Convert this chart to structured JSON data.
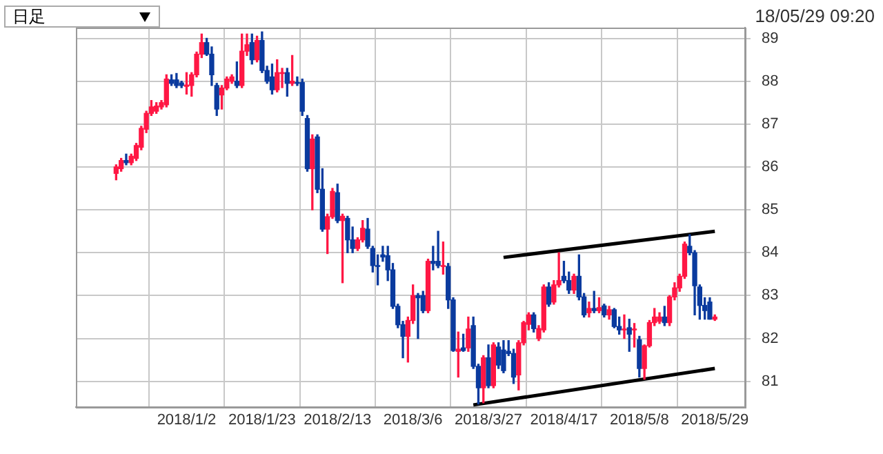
{
  "chart_data": {
    "type": "candlestick",
    "annotations": [
      "日足",
      "18/05/29 09:20"
    ],
    "categories": [
      null,
      null,
      null,
      null,
      null,
      null,
      null,
      null,
      null,
      null,
      null,
      null,
      null,
      null,
      "2018/1/2",
      null,
      null,
      null,
      null,
      null,
      null,
      null,
      null,
      null,
      null,
      null,
      null,
      null,
      null,
      "2018/1/23",
      null,
      null,
      null,
      null,
      null,
      null,
      null,
      null,
      null,
      null,
      null,
      null,
      null,
      null,
      "2018/2/13",
      null,
      null,
      null,
      null,
      null,
      null,
      null,
      null,
      null,
      null,
      null,
      null,
      null,
      null,
      "2018/3/6",
      null,
      null,
      null,
      null,
      null,
      null,
      null,
      null,
      null,
      null,
      null,
      null,
      null,
      null,
      "2018/3/27",
      null,
      null,
      null,
      null,
      null,
      null,
      null,
      null,
      null,
      null,
      null,
      null,
      null,
      null,
      "2018/4/17",
      null,
      null,
      null,
      null,
      null,
      null,
      null,
      null,
      null,
      null,
      null,
      null,
      null,
      null,
      "2018/5/8",
      null,
      null,
      null,
      null,
      null,
      null,
      null,
      null,
      null,
      null,
      null,
      null,
      null,
      null,
      "2018/5/29"
    ],
    "ohlc": [
      [
        85.85,
        86.05,
        85.7,
        86.0
      ],
      [
        85.96,
        86.2,
        85.9,
        86.15
      ],
      [
        86.15,
        86.3,
        86.05,
        86.1
      ],
      [
        86.1,
        86.3,
        86.05,
        86.25
      ],
      [
        86.2,
        86.55,
        86.15,
        86.5
      ],
      [
        86.46,
        86.95,
        86.4,
        86.9
      ],
      [
        86.88,
        87.3,
        86.8,
        87.25
      ],
      [
        87.25,
        87.55,
        87.2,
        87.4
      ],
      [
        87.3,
        87.5,
        87.25,
        87.42
      ],
      [
        87.4,
        87.55,
        87.35,
        87.5
      ],
      [
        87.45,
        88.15,
        87.4,
        88.05
      ],
      [
        88.03,
        88.15,
        87.9,
        87.95
      ],
      [
        88.03,
        88.18,
        87.85,
        87.9
      ],
      [
        87.96,
        88.0,
        87.85,
        87.9
      ],
      [
        87.88,
        88.2,
        87.7,
        87.91
      ],
      [
        87.9,
        88.2,
        87.65,
        88.15
      ],
      [
        88.15,
        88.68,
        88.1,
        88.63
      ],
      [
        88.63,
        89.1,
        88.55,
        88.9
      ],
      [
        88.9,
        89.0,
        88.6,
        88.63
      ],
      [
        88.63,
        88.8,
        87.9,
        88.15
      ],
      [
        87.9,
        87.95,
        87.2,
        87.35
      ],
      [
        87.68,
        87.9,
        87.35,
        87.84
      ],
      [
        87.84,
        88.1,
        87.8,
        88.05
      ],
      [
        88.0,
        88.15,
        87.95,
        88.1
      ],
      [
        88.0,
        88.45,
        87.85,
        87.9
      ],
      [
        87.9,
        89.1,
        87.85,
        88.7
      ],
      [
        88.7,
        89.1,
        88.6,
        88.85
      ],
      [
        88.9,
        89.1,
        88.4,
        88.5
      ],
      [
        88.5,
        89.05,
        88.45,
        88.95
      ],
      [
        88.95,
        89.15,
        88.2,
        88.25
      ],
      [
        88.25,
        88.35,
        87.95,
        88.0
      ],
      [
        88.1,
        88.4,
        87.7,
        87.8
      ],
      [
        87.8,
        88.5,
        87.75,
        88.2
      ],
      [
        88.18,
        88.3,
        87.85,
        88.2
      ],
      [
        88.2,
        88.3,
        87.65,
        87.95
      ],
      [
        87.95,
        88.6,
        87.9,
        88.0
      ],
      [
        87.97,
        88.1,
        87.9,
        87.95
      ],
      [
        87.97,
        88.05,
        87.2,
        87.3
      ],
      [
        87.13,
        87.2,
        85.9,
        85.96
      ],
      [
        85.96,
        86.75,
        85.0,
        86.65
      ],
      [
        86.7,
        86.75,
        85.4,
        85.48
      ],
      [
        85.48,
        85.96,
        84.5,
        84.55
      ],
      [
        84.55,
        84.9,
        83.98,
        84.84
      ],
      [
        84.84,
        85.5,
        84.8,
        85.43
      ],
      [
        85.4,
        85.6,
        84.7,
        84.75
      ],
      [
        84.75,
        84.9,
        83.3,
        84.85
      ],
      [
        84.8,
        84.85,
        84.0,
        84.3
      ],
      [
        84.3,
        84.6,
        84.0,
        84.1
      ],
      [
        84.1,
        84.35,
        84.05,
        84.3
      ],
      [
        84.3,
        84.75,
        84.25,
        84.57
      ],
      [
        84.55,
        84.8,
        84.1,
        84.15
      ],
      [
        84.1,
        84.15,
        83.55,
        83.7
      ],
      [
        83.7,
        83.95,
        83.25,
        83.68
      ],
      [
        83.95,
        84.15,
        83.8,
        83.9
      ],
      [
        83.93,
        84.15,
        83.35,
        83.6
      ],
      [
        83.6,
        83.75,
        82.7,
        82.75
      ],
      [
        82.75,
        82.8,
        82.25,
        82.32
      ],
      [
        82.32,
        82.4,
        81.55,
        82.05
      ],
      [
        82.05,
        82.5,
        81.45,
        82.42
      ],
      [
        82.42,
        83.25,
        82.35,
        83.0
      ],
      [
        83.0,
        83.05,
        82.0,
        82.95
      ],
      [
        83.0,
        83.1,
        82.6,
        82.65
      ],
      [
        82.65,
        83.85,
        82.6,
        83.8
      ],
      [
        83.8,
        84.15,
        83.6,
        83.75
      ],
      [
        83.8,
        84.5,
        83.65,
        83.7
      ],
      [
        83.68,
        84.25,
        83.5,
        83.7
      ],
      [
        83.68,
        83.75,
        82.7,
        82.9
      ],
      [
        82.9,
        82.95,
        81.7,
        81.72
      ],
      [
        81.7,
        82.15,
        81.1,
        81.75
      ],
      [
        81.78,
        82.1,
        81.7,
        81.72
      ],
      [
        81.78,
        82.5,
        81.7,
        82.22
      ],
      [
        82.3,
        82.5,
        81.3,
        81.35
      ],
      [
        81.35,
        81.4,
        80.47,
        80.85
      ],
      [
        80.85,
        81.6,
        80.5,
        81.55
      ],
      [
        81.55,
        81.85,
        80.85,
        80.9
      ],
      [
        80.9,
        81.9,
        80.85,
        81.85
      ],
      [
        81.8,
        81.9,
        81.3,
        81.38
      ],
      [
        81.73,
        81.95,
        81.2,
        81.25
      ],
      [
        81.7,
        81.95,
        81.6,
        81.65
      ],
      [
        81.65,
        81.75,
        80.95,
        81.1
      ],
      [
        81.15,
        81.95,
        80.8,
        81.9
      ],
      [
        81.9,
        82.4,
        81.85,
        82.37
      ],
      [
        82.33,
        82.6,
        82.2,
        82.55
      ],
      [
        82.55,
        82.6,
        82.15,
        82.23
      ],
      [
        82.0,
        82.3,
        81.95,
        82.23
      ],
      [
        82.2,
        83.25,
        82.15,
        83.2
      ],
      [
        83.2,
        83.3,
        82.75,
        82.8
      ],
      [
        82.85,
        83.35,
        82.8,
        83.25
      ],
      [
        83.25,
        84.0,
        83.2,
        83.35
      ],
      [
        83.45,
        83.8,
        83.3,
        83.35
      ],
      [
        83.35,
        83.55,
        83.05,
        83.13
      ],
      [
        83.13,
        83.5,
        83.05,
        83.45
      ],
      [
        83.45,
        83.95,
        82.9,
        82.97
      ],
      [
        82.97,
        83.05,
        82.5,
        82.55
      ],
      [
        82.6,
        82.85,
        82.5,
        82.7
      ],
      [
        82.7,
        83.1,
        82.6,
        82.65
      ],
      [
        82.65,
        82.95,
        82.6,
        82.72
      ],
      [
        82.76,
        82.8,
        82.5,
        82.55
      ],
      [
        82.55,
        82.75,
        82.45,
        82.67
      ],
      [
        82.67,
        82.7,
        82.25,
        82.28
      ],
      [
        82.28,
        82.5,
        82.1,
        82.2
      ],
      [
        82.2,
        82.55,
        82.0,
        82.22
      ],
      [
        82.25,
        82.45,
        81.7,
        82.1
      ],
      [
        82.2,
        82.35,
        81.8,
        82.22
      ],
      [
        81.97,
        82.05,
        81.1,
        81.3
      ],
      [
        81.3,
        81.85,
        81.05,
        81.83
      ],
      [
        81.83,
        82.42,
        81.8,
        82.37
      ],
      [
        82.37,
        82.7,
        82.3,
        82.5
      ],
      [
        82.4,
        82.6,
        82.35,
        82.5
      ],
      [
        82.5,
        82.75,
        82.3,
        82.37
      ],
      [
        82.37,
        83.0,
        82.3,
        82.97
      ],
      [
        82.97,
        83.3,
        82.9,
        83.18
      ],
      [
        83.18,
        83.5,
        83.1,
        83.45
      ],
      [
        83.45,
        84.25,
        83.4,
        84.2
      ],
      [
        84.15,
        84.42,
        83.95,
        84.0
      ],
      [
        84.0,
        84.05,
        82.55,
        83.23
      ],
      [
        83.2,
        83.25,
        82.45,
        82.77
      ],
      [
        82.77,
        82.95,
        82.45,
        82.65
      ],
      [
        82.85,
        82.95,
        82.45,
        82.45
      ],
      [
        82.45,
        82.55,
        82.42,
        82.5
      ]
    ],
    "series": [
      {
        "type": "line",
        "color": "#000000",
        "values": [
          null,
          null,
          null,
          null,
          null,
          null,
          null,
          null,
          null,
          null,
          null,
          null,
          null,
          null,
          null,
          null,
          null,
          null,
          null,
          null,
          null,
          null,
          null,
          null,
          null,
          null,
          null,
          null,
          null,
          null,
          null,
          null,
          null,
          null,
          null,
          null,
          null,
          null,
          null,
          null,
          null,
          null,
          null,
          null,
          null,
          null,
          null,
          null,
          null,
          null,
          null,
          null,
          null,
          null,
          null,
          null,
          null,
          null,
          null,
          null,
          null,
          null,
          null,
          null,
          null,
          null,
          null,
          null,
          null,
          null,
          null,
          null,
          null,
          null,
          null,
          null,
          null,
          83.89,
          null,
          null,
          null,
          null,
          null,
          null,
          null,
          null,
          null,
          null,
          null,
          null,
          null,
          null,
          null,
          null,
          null,
          null,
          null,
          null,
          null,
          null,
          null,
          null,
          null,
          null,
          null,
          null,
          null,
          null,
          null,
          null,
          null,
          null,
          null,
          null,
          null,
          null,
          null,
          null,
          null,
          84.5
        ]
      },
      {
        "type": "line",
        "color": "#000000",
        "values": [
          null,
          null,
          null,
          null,
          null,
          null,
          null,
          null,
          null,
          null,
          null,
          null,
          null,
          null,
          null,
          null,
          null,
          null,
          null,
          null,
          null,
          null,
          null,
          null,
          null,
          null,
          null,
          null,
          null,
          null,
          null,
          null,
          null,
          null,
          null,
          null,
          null,
          null,
          null,
          null,
          null,
          null,
          null,
          null,
          null,
          null,
          null,
          null,
          null,
          null,
          null,
          null,
          null,
          null,
          null,
          null,
          null,
          null,
          null,
          null,
          null,
          null,
          null,
          null,
          null,
          null,
          null,
          null,
          null,
          null,
          null,
          80.45,
          null,
          null,
          null,
          null,
          null,
          null,
          null,
          null,
          null,
          null,
          null,
          null,
          null,
          null,
          null,
          null,
          null,
          null,
          null,
          null,
          null,
          null,
          null,
          null,
          null,
          null,
          null,
          null,
          null,
          null,
          null,
          null,
          null,
          null,
          null,
          null,
          null,
          null,
          null,
          null,
          null,
          null,
          null,
          null,
          null,
          null,
          null,
          81.3
        ]
      }
    ],
    "ylim": [
      80.4,
      89.25
    ],
    "yticks": [
      81,
      82,
      83,
      84,
      85,
      86,
      87,
      88,
      89
    ],
    "grid": true
  }
}
